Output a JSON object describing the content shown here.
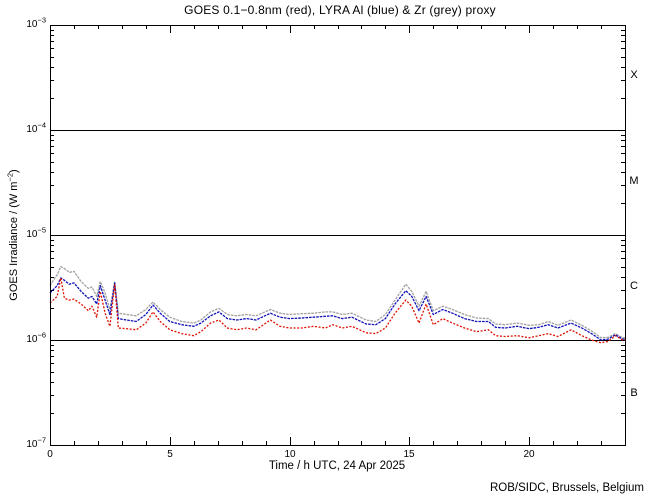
{
  "header": {
    "title": "GOES 0.1−0.8nm (red), LYRA Al (blue) & Zr (grey) proxy"
  },
  "footer": {
    "credit": "ROB/SIDC, Brussels, Belgium"
  },
  "axes": {
    "x": {
      "label": "Time / h UTC, 24 Apr 2025",
      "tick_labels": [
        "0",
        "5",
        "10",
        "15",
        "20"
      ],
      "tick_hours": [
        0,
        5,
        10,
        15,
        20
      ],
      "minor_tick_step_hours": 1,
      "range_hours": [
        0,
        24
      ]
    },
    "y": {
      "label_pre": "GOES Irradiance / (W m",
      "label_sup": "−2",
      "label_post": ")",
      "scale": "log",
      "tick_base": "10",
      "tick_exponents": [
        "−3",
        "−4",
        "−5",
        "−6",
        "−7"
      ],
      "tick_values": [
        0.001,
        0.0001,
        1e-05,
        1e-06,
        1e-07
      ]
    }
  },
  "flare_classes": {
    "labels": [
      "X",
      "M",
      "C",
      "B"
    ],
    "boundary_lines_wm2": [
      0.0001,
      1e-05,
      1e-06
    ]
  },
  "colors": {
    "red": "#dd1100",
    "blue": "#1111bb",
    "grey": "#a0a0a0",
    "axis": "#000000",
    "background": "#ffffff"
  },
  "chart_data": {
    "type": "line",
    "title": "GOES 0.1−0.8nm (red), LYRA Al (blue) & Zr (grey) proxy",
    "xlabel": "Time / h UTC, 24 Apr 2025",
    "ylabel": "GOES Irradiance / (W m−2)",
    "xlim_hours": [
      0,
      24
    ],
    "ylim_wm2": [
      1e-07,
      0.001
    ],
    "grid": false,
    "legend": "encoded in title colors",
    "values_unit": "1e-6 W m-2 (multiply by 1e-6 for W/m2)",
    "x_hours": [
      0,
      0.3,
      0.45,
      0.6,
      0.8,
      1.0,
      1.3,
      1.6,
      1.75,
      1.95,
      2.1,
      2.3,
      2.5,
      2.7,
      2.85,
      3.2,
      3.6,
      4.0,
      4.3,
      4.6,
      5.0,
      5.5,
      6.0,
      6.3,
      6.7,
      7.05,
      7.4,
      7.8,
      8.2,
      8.6,
      9.2,
      9.6,
      10.0,
      10.5,
      11.0,
      11.5,
      11.8,
      12.2,
      12.6,
      13.2,
      13.6,
      14.0,
      14.4,
      14.85,
      15.1,
      15.4,
      15.7,
      16.0,
      16.4,
      16.8,
      17.3,
      17.8,
      18.3,
      18.6,
      19.0,
      19.5,
      20.0,
      20.4,
      20.8,
      21.2,
      21.75,
      22.2,
      22.6,
      23.0,
      23.3,
      23.6,
      23.9,
      24.0
    ],
    "series": [
      {
        "name": "LYRA Zr proxy",
        "color_key": "grey",
        "values": [
          3.3,
          4.2,
          5.0,
          4.8,
          4.4,
          4.5,
          3.6,
          3.1,
          3.2,
          2.6,
          3.6,
          2.8,
          1.95,
          3.6,
          1.8,
          1.75,
          1.7,
          1.95,
          2.3,
          1.95,
          1.65,
          1.5,
          1.45,
          1.55,
          1.85,
          2.0,
          1.75,
          1.7,
          1.75,
          1.7,
          1.95,
          1.8,
          1.75,
          1.78,
          1.8,
          1.85,
          1.85,
          1.75,
          1.8,
          1.55,
          1.5,
          1.75,
          2.4,
          3.4,
          2.9,
          2.1,
          2.9,
          1.9,
          2.1,
          1.95,
          1.75,
          1.62,
          1.6,
          1.42,
          1.4,
          1.45,
          1.38,
          1.4,
          1.5,
          1.38,
          1.55,
          1.38,
          1.22,
          1.05,
          1.06,
          1.15,
          1.05,
          1.05
        ]
      },
      {
        "name": "LYRA Al proxy",
        "color_key": "blue",
        "values": [
          2.8,
          3.3,
          3.9,
          3.7,
          3.4,
          3.5,
          2.9,
          2.5,
          2.6,
          2.2,
          3.3,
          2.4,
          1.75,
          3.5,
          1.6,
          1.55,
          1.5,
          1.75,
          2.15,
          1.8,
          1.5,
          1.4,
          1.35,
          1.45,
          1.7,
          1.85,
          1.6,
          1.55,
          1.6,
          1.55,
          1.8,
          1.65,
          1.6,
          1.62,
          1.65,
          1.68,
          1.7,
          1.6,
          1.65,
          1.42,
          1.4,
          1.6,
          2.2,
          2.95,
          2.6,
          1.9,
          2.6,
          1.75,
          1.95,
          1.8,
          1.6,
          1.5,
          1.5,
          1.32,
          1.3,
          1.35,
          1.28,
          1.32,
          1.4,
          1.3,
          1.45,
          1.3,
          1.15,
          1.0,
          1.02,
          1.12,
          1.02,
          1.02
        ]
      },
      {
        "name": "GOES 0.1−0.8nm",
        "color_key": "red",
        "values": [
          2.25,
          2.6,
          3.9,
          2.5,
          2.4,
          2.45,
          2.2,
          1.9,
          2.1,
          1.65,
          2.9,
          1.8,
          1.35,
          3.4,
          1.3,
          1.28,
          1.25,
          1.45,
          1.85,
          1.5,
          1.25,
          1.15,
          1.1,
          1.2,
          1.45,
          1.55,
          1.3,
          1.25,
          1.3,
          1.25,
          1.55,
          1.35,
          1.3,
          1.3,
          1.35,
          1.3,
          1.4,
          1.3,
          1.35,
          1.17,
          1.15,
          1.3,
          1.8,
          2.4,
          2.1,
          1.45,
          2.2,
          1.4,
          1.6,
          1.45,
          1.3,
          1.2,
          1.25,
          1.1,
          1.08,
          1.1,
          1.05,
          1.1,
          1.15,
          1.08,
          1.25,
          1.1,
          1.0,
          0.94,
          0.97,
          1.1,
          1.0,
          1.0
        ]
      }
    ]
  }
}
